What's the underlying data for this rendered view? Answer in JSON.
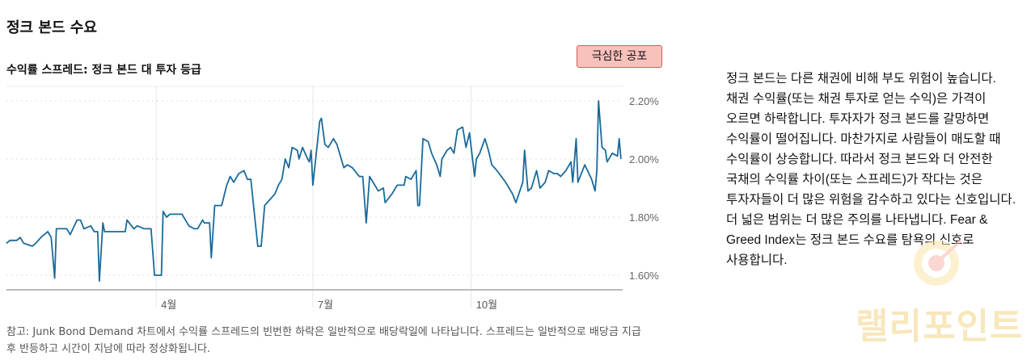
{
  "title": "정크 본드 수요",
  "badge": {
    "label": "극심한 공포",
    "color": "#f8c1bc"
  },
  "description": "정크 본드는 다른 채권에 비해 부도 위험이 높습니다. 채권 수익률(또는 채권 투자로 얻는 수익)은 가격이 오르면 하락합니다. 투자자가 정크 본드를 갈망하면 수익률이 떨어집니다. 마찬가지로 사람들이 매도할 때 수익률이 상승합니다. 따라서 정크 본드와 더 안전한 국채의 수익률 차이(또는 스프레드)가 작다는 것은 투자자들이 더 많은 위험을 감수하고 있다는 신호입니다. 더 넓은 범위는 더 많은 주의를 나타냅니다. Fear & Greed Index는 정크 본드 수요를 탐욕의 신호로 사용합니다.",
  "note": "참고: Junk Bond Demand 차트에서 수익률 스프레드의 빈번한 하락은 일반적으로 배당락일에 나타납니다. 스프레드는 일반적으로 배당금 지급 후 반등하고 시간이 지남에 따라 정상화됩니다.",
  "watermark": "랠리포인트",
  "chart_data": {
    "type": "line",
    "title": "수익률 스프레드: 정크 본드 대 투자 등급",
    "xlabel": "",
    "ylabel": "",
    "x_unit": "day of year",
    "xlim": [
      4,
      362
    ],
    "ylim": [
      1.55,
      2.25
    ],
    "x_ticks": [
      {
        "day": 91,
        "label": "4월"
      },
      {
        "day": 182,
        "label": "7월"
      },
      {
        "day": 274,
        "label": "10월"
      }
    ],
    "y_ticks": [
      {
        "value": 1.6,
        "label": "1.60%"
      },
      {
        "value": 1.8,
        "label": "1.80%"
      },
      {
        "value": 2.0,
        "label": "2.00%"
      },
      {
        "value": 2.2,
        "label": "2.20%"
      }
    ],
    "grid": true,
    "color": "#1a6a9a",
    "points": [
      [
        4,
        1.71
      ],
      [
        6,
        1.72
      ],
      [
        10,
        1.72
      ],
      [
        12,
        1.73
      ],
      [
        14,
        1.71
      ],
      [
        19,
        1.7
      ],
      [
        21,
        1.71
      ],
      [
        24,
        1.73
      ],
      [
        26,
        1.74
      ],
      [
        28,
        1.75
      ],
      [
        30,
        1.73
      ],
      [
        32,
        1.59
      ],
      [
        33,
        1.76
      ],
      [
        35,
        1.76
      ],
      [
        39,
        1.76
      ],
      [
        41,
        1.74
      ],
      [
        45,
        1.79
      ],
      [
        47,
        1.79
      ],
      [
        49,
        1.76
      ],
      [
        53,
        1.77
      ],
      [
        55,
        1.75
      ],
      [
        57,
        1.75
      ],
      [
        58,
        1.58
      ],
      [
        60,
        1.78
      ],
      [
        61,
        1.75
      ],
      [
        73,
        1.75
      ],
      [
        74,
        1.79
      ],
      [
        78,
        1.76
      ],
      [
        80,
        1.77
      ],
      [
        84,
        1.76
      ],
      [
        87,
        1.76
      ],
      [
        88,
        1.76
      ],
      [
        90,
        1.6
      ],
      [
        94,
        1.6
      ],
      [
        95,
        1.82
      ],
      [
        97,
        1.8
      ],
      [
        99,
        1.81
      ],
      [
        103,
        1.81
      ],
      [
        106,
        1.81
      ],
      [
        110,
        1.77
      ],
      [
        113,
        1.76
      ],
      [
        115,
        1.76
      ],
      [
        118,
        1.79
      ],
      [
        119,
        1.78
      ],
      [
        122,
        1.78
      ],
      [
        123,
        1.66
      ],
      [
        125,
        1.84
      ],
      [
        129,
        1.84
      ],
      [
        132,
        1.91
      ],
      [
        134,
        1.94
      ],
      [
        136,
        1.92
      ],
      [
        139,
        1.95
      ],
      [
        142,
        1.96
      ],
      [
        144,
        1.93
      ],
      [
        146,
        1.93
      ],
      [
        150,
        1.7
      ],
      [
        152,
        1.7
      ],
      [
        154,
        1.84
      ],
      [
        157,
        1.86
      ],
      [
        160,
        1.88
      ],
      [
        162,
        1.91
      ],
      [
        164,
        1.93
      ],
      [
        166,
        2.0
      ],
      [
        168,
        1.97
      ],
      [
        170,
        2.04
      ],
      [
        173,
        2.03
      ],
      [
        174,
        2.0
      ],
      [
        176,
        2.04
      ],
      [
        179,
        2.0
      ],
      [
        180,
        1.99
      ],
      [
        181,
        2.03
      ],
      [
        182,
        1.91
      ],
      [
        186,
        2.13
      ],
      [
        187,
        2.14
      ],
      [
        189,
        2.05
      ],
      [
        191,
        2.04
      ],
      [
        194,
        2.07
      ],
      [
        196,
        2.05
      ],
      [
        200,
        1.97
      ],
      [
        202,
        1.98
      ],
      [
        205,
        1.97
      ],
      [
        209,
        1.94
      ],
      [
        211,
        1.94
      ],
      [
        213,
        1.78
      ],
      [
        215,
        1.94
      ],
      [
        216,
        1.93
      ],
      [
        220,
        1.89
      ],
      [
        223,
        1.9
      ],
      [
        224,
        1.85
      ],
      [
        228,
        1.88
      ],
      [
        231,
        1.91
      ],
      [
        235,
        1.91
      ],
      [
        236,
        1.94
      ],
      [
        239,
        1.93
      ],
      [
        242,
        1.96
      ],
      [
        243,
        1.84
      ],
      [
        244,
        1.84
      ],
      [
        246,
        2.07
      ],
      [
        249,
        2.06
      ],
      [
        251,
        2.02
      ],
      [
        254,
        1.98
      ],
      [
        256,
        1.94
      ],
      [
        257,
        2.0
      ],
      [
        260,
        2.03
      ],
      [
        262,
        2.04
      ],
      [
        264,
        2.02
      ],
      [
        266,
        2.1
      ],
      [
        269,
        2.11
      ],
      [
        271,
        2.04
      ],
      [
        273,
        2.09
      ],
      [
        276,
        1.94
      ],
      [
        277,
        2.0
      ],
      [
        279,
        2.02
      ],
      [
        282,
        2.07
      ],
      [
        284,
        2.03
      ],
      [
        286,
        1.98
      ],
      [
        289,
        1.96
      ],
      [
        294,
        1.92
      ],
      [
        298,
        1.88
      ],
      [
        300,
        1.85
      ],
      [
        304,
        1.92
      ],
      [
        305,
        2.03
      ],
      [
        307,
        1.89
      ],
      [
        309,
        1.9
      ],
      [
        312,
        1.96
      ],
      [
        314,
        1.9
      ],
      [
        317,
        1.92
      ],
      [
        319,
        1.96
      ],
      [
        322,
        1.95
      ],
      [
        324,
        1.95
      ],
      [
        326,
        1.94
      ],
      [
        329,
        1.96
      ],
      [
        332,
        1.99
      ],
      [
        333,
        1.92
      ],
      [
        335,
        2.07
      ],
      [
        336,
        1.92
      ],
      [
        338,
        1.95
      ],
      [
        340,
        1.98
      ],
      [
        344,
        1.93
      ],
      [
        346,
        1.89
      ],
      [
        347,
        1.96
      ],
      [
        348,
        2.2
      ],
      [
        350,
        2.04
      ],
      [
        352,
        2.03
      ],
      [
        353,
        1.99
      ],
      [
        356,
        2.02
      ],
      [
        359,
        2.01
      ],
      [
        360,
        2.07
      ],
      [
        361,
        2.0
      ]
    ]
  }
}
